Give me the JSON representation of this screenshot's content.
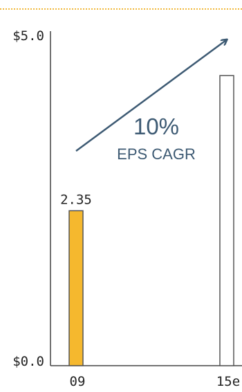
{
  "chart_data": {
    "type": "bar",
    "categories": [
      "09",
      "15e"
    ],
    "values": [
      2.35,
      4.4
    ],
    "data_labels": [
      "2.35",
      ""
    ],
    "ylim": [
      0,
      5.0
    ],
    "y_tick_labels": [
      "$5.0",
      "$0.0"
    ],
    "title": "",
    "xlabel": "",
    "ylabel": "",
    "grid": false,
    "bar_styles": [
      {
        "fill": "#f5b82e",
        "stroke": "#555555"
      },
      {
        "fill": "#ffffff",
        "stroke": "#555555"
      }
    ],
    "annotation": {
      "main": "10%",
      "sub": "EPS CAGR",
      "color": "#3d5a73",
      "arrow_color": "#3d5a73"
    },
    "accent_rule_color": "#f0b83a"
  }
}
